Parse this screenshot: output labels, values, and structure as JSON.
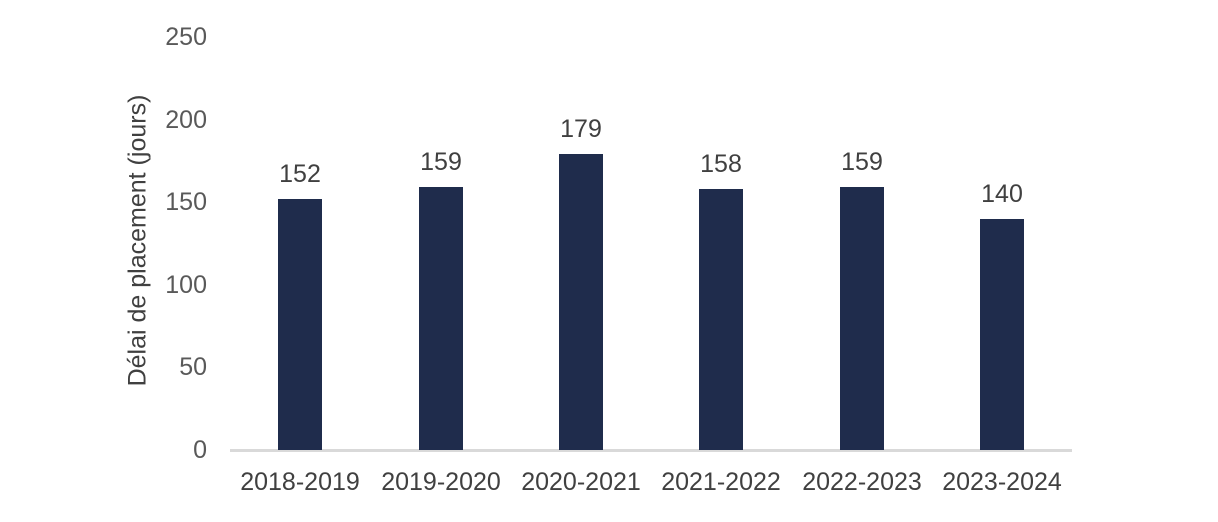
{
  "chart_data": {
    "type": "bar",
    "categories": [
      "2018-2019",
      "2019-2020",
      "2020-2021",
      "2021-2022",
      "2022-2023",
      "2023-2024"
    ],
    "values": [
      152,
      159,
      179,
      158,
      159,
      140
    ],
    "title": "",
    "xlabel": "",
    "ylabel": "Délai de placement (jours)",
    "ylim": [
      0,
      250
    ],
    "yticks": [
      0,
      50,
      100,
      150,
      200,
      250
    ],
    "grid": false,
    "legend": "none",
    "data_labels": true,
    "colors": {
      "bar": "#1f2c4c",
      "tick_label": "#595959",
      "data_label": "#404040",
      "axis_title": "#404040",
      "axis_line": "#d9d9d9",
      "background": "#ffffff"
    }
  }
}
